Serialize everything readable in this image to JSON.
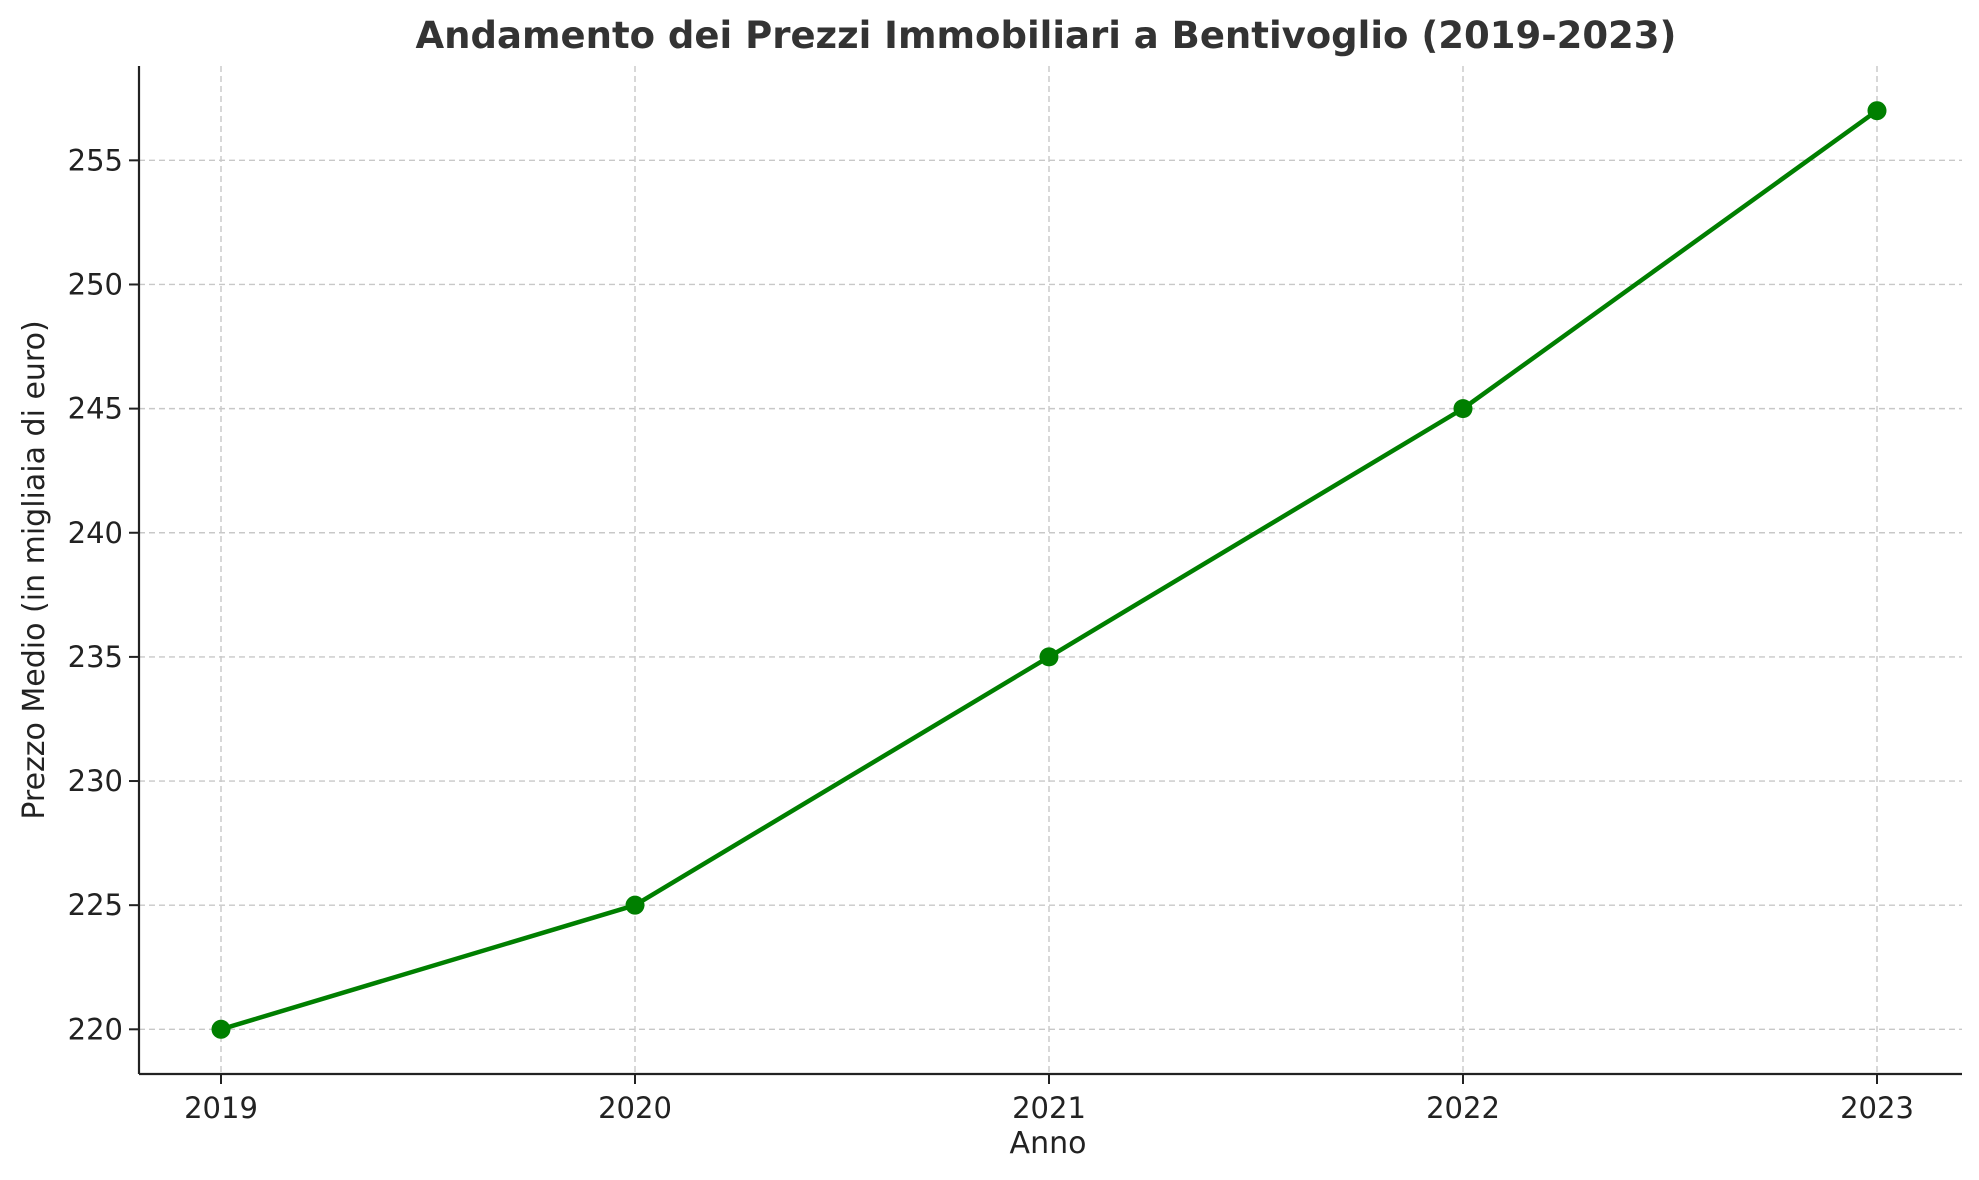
{
  "chart_data": {
    "type": "line",
    "title": "Andamento dei Prezzi Immobiliari a Bentivoglio (2019-2023)",
    "xlabel": "Anno",
    "ylabel": "Prezzo Medio (in migliaia di euro)",
    "categories": [
      "2019",
      "2020",
      "2021",
      "2022",
      "2023"
    ],
    "series": [
      {
        "values": [
          220,
          225,
          235,
          245,
          257
        ],
        "color": "#007f00",
        "marker": "circle"
      }
    ],
    "ylim": [
      218.2,
      258.8
    ],
    "yticks": [
      220,
      225,
      230,
      235,
      240,
      245,
      250,
      255
    ],
    "grid": true,
    "grid_style": "dashed",
    "legend": "none"
  }
}
